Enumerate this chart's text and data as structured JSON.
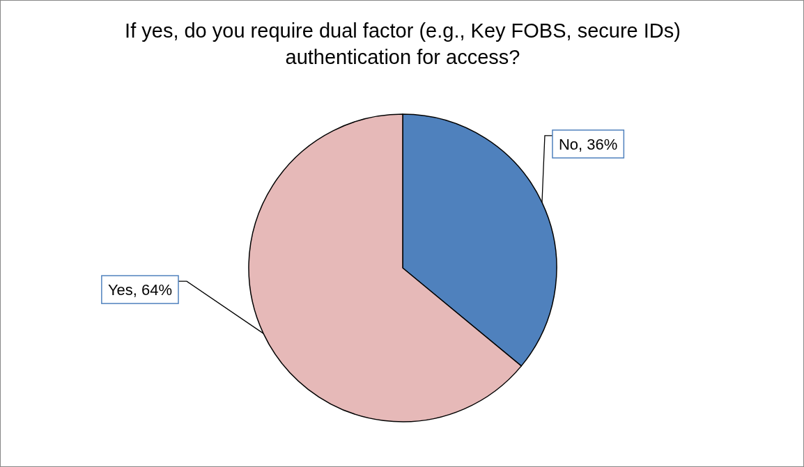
{
  "chart_data": {
    "type": "pie",
    "title": "If yes, do you require dual factor (e.g., Key FOBS, secure IDs) authentication for access?",
    "categories": [
      "No",
      "Yes"
    ],
    "values": [
      36,
      64
    ],
    "colors": [
      "#4f81bd",
      "#e6b9b8"
    ],
    "value_labels": [
      "36%",
      "64%"
    ],
    "legend": false
  }
}
